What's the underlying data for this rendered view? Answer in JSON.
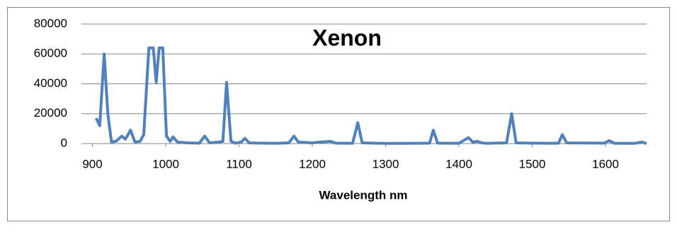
{
  "chart_data": {
    "type": "line",
    "title": "Xenon",
    "x_label": "Wavelength nm",
    "x": [
      905,
      910,
      916,
      921,
      926,
      932,
      940,
      945,
      952,
      958,
      965,
      970,
      977,
      983,
      987,
      991,
      996,
      1001,
      1006,
      1010,
      1016,
      1030,
      1046,
      1053,
      1060,
      1072,
      1078,
      1083,
      1089,
      1095,
      1103,
      1108,
      1114,
      1130,
      1150,
      1168,
      1175,
      1181,
      1200,
      1210,
      1225,
      1232,
      1255,
      1262,
      1268,
      1300,
      1340,
      1360,
      1365,
      1371,
      1400,
      1413,
      1419,
      1425,
      1431,
      1437,
      1465,
      1472,
      1478,
      1520,
      1536,
      1541,
      1547,
      1598,
      1605,
      1612,
      1640,
      1650,
      1656
    ],
    "series": [
      {
        "color": "#4f81bd",
        "values": [
          17000,
          12000,
          60000,
          20000,
          1000,
          1500,
          5000,
          3000,
          9000,
          1000,
          1500,
          6000,
          64000,
          64000,
          41000,
          64000,
          64000,
          5000,
          1500,
          4500,
          1000,
          500,
          300,
          5000,
          500,
          1000,
          1500,
          41000,
          1500,
          300,
          1000,
          3500,
          500,
          300,
          200,
          500,
          5000,
          1000,
          500,
          1000,
          1500,
          300,
          200,
          14000,
          500,
          100,
          200,
          300,
          9000,
          300,
          200,
          4000,
          1000,
          1500,
          500,
          200,
          500,
          20000,
          500,
          200,
          300,
          6000,
          500,
          300,
          2000,
          200,
          200,
          1000,
          0
        ]
      }
    ],
    "xlim": [
      885,
      1656
    ],
    "xticks": [
      900,
      1000,
      1100,
      1200,
      1300,
      1400,
      1500,
      1600
    ],
    "ylim": [
      0,
      80000
    ],
    "yticks": [
      0,
      20000,
      40000,
      60000,
      80000
    ],
    "grid": true
  }
}
